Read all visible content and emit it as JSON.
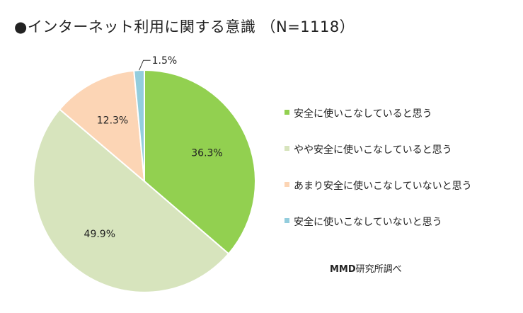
{
  "title": "●インターネット利用に関する意識 （N=1118）",
  "source": {
    "brand": "MMD",
    "rest": "研究所調べ"
  },
  "chart_data": {
    "type": "pie",
    "title": "●インターネット利用に関する意識 （N=1118）",
    "unit": "%",
    "start": "12 o'clock, clockwise",
    "legend_position": "right",
    "slices": [
      {
        "label": "安全に使いこなしていると思う",
        "value": 36.3,
        "value_label": "36.3%",
        "color": "#92d050"
      },
      {
        "label": "やや安全に使いこなしていると思う",
        "value": 49.9,
        "value_label": "49.9%",
        "color": "#d7e4bd"
      },
      {
        "label": "あまり安全に使いこなしていないと思う",
        "value": 12.3,
        "value_label": "12.3%",
        "color": "#fcd5b5"
      },
      {
        "label": "安全に使いこなしていないと思う",
        "value": 1.5,
        "value_label": "1.5%",
        "color": "#93cddd"
      }
    ]
  }
}
